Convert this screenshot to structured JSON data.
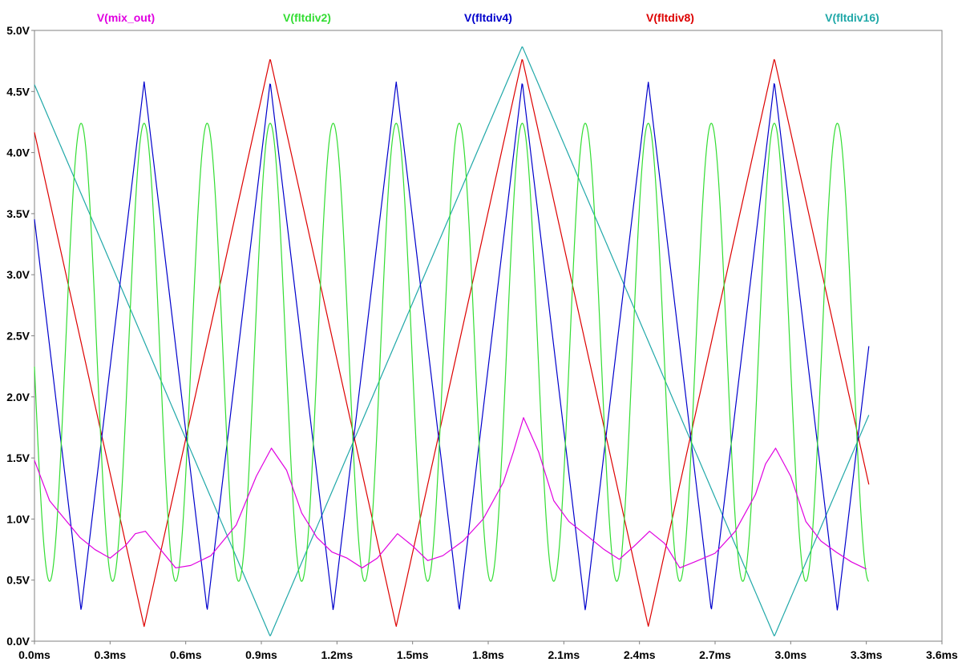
{
  "chart_data": {
    "type": "line",
    "title": "",
    "xlabel": "",
    "ylabel": "",
    "x_axis": {
      "min": 0.0,
      "max": 3.6,
      "unit": "ms",
      "ticks": [
        0.0,
        0.3,
        0.6,
        0.9,
        1.2,
        1.5,
        1.8,
        2.1,
        2.4,
        2.7,
        3.0,
        3.3,
        3.6
      ],
      "tick_labels": [
        "0.0ms",
        "0.3ms",
        "0.6ms",
        "0.9ms",
        "1.2ms",
        "1.5ms",
        "1.8ms",
        "2.1ms",
        "2.4ms",
        "2.7ms",
        "3.0ms",
        "3.3ms",
        "3.6ms"
      ]
    },
    "y_axis": {
      "min": 0.0,
      "max": 5.0,
      "unit": "V",
      "ticks": [
        0.0,
        0.5,
        1.0,
        1.5,
        2.0,
        2.5,
        3.0,
        3.5,
        4.0,
        4.5,
        5.0
      ],
      "tick_labels": [
        "0.0V",
        "0.5V",
        "1.0V",
        "1.5V",
        "2.0V",
        "2.5V",
        "3.0V",
        "3.5V",
        "4.0V",
        "4.5V",
        "5.0V"
      ]
    },
    "grid": false,
    "legend_position": "top",
    "series": [
      {
        "name": "V(mix_out)",
        "color": "#e000e0",
        "x": [
          0.0,
          0.06,
          0.12,
          0.18,
          0.24,
          0.3,
          0.36,
          0.4,
          0.44,
          0.5,
          0.56,
          0.62,
          0.7,
          0.8,
          0.88,
          0.94,
          1.0,
          1.06,
          1.12,
          1.18,
          1.24,
          1.3,
          1.36,
          1.44,
          1.5,
          1.56,
          1.62,
          1.7,
          1.78,
          1.86,
          1.9,
          1.94,
          2.0,
          2.06,
          2.12,
          2.2,
          2.26,
          2.32,
          2.38,
          2.44,
          2.5,
          2.56,
          2.62,
          2.7,
          2.78,
          2.86,
          2.9,
          2.94,
          3.0,
          3.06,
          3.12,
          3.18,
          3.24,
          3.3
        ],
        "y": [
          1.48,
          1.15,
          1.0,
          0.85,
          0.75,
          0.68,
          0.78,
          0.88,
          0.9,
          0.75,
          0.6,
          0.62,
          0.7,
          0.95,
          1.35,
          1.58,
          1.4,
          1.05,
          0.85,
          0.73,
          0.68,
          0.6,
          0.68,
          0.88,
          0.78,
          0.66,
          0.7,
          0.82,
          1.0,
          1.3,
          1.55,
          1.83,
          1.55,
          1.15,
          0.98,
          0.85,
          0.75,
          0.67,
          0.78,
          0.9,
          0.8,
          0.6,
          0.65,
          0.72,
          0.9,
          1.2,
          1.45,
          1.58,
          1.35,
          0.98,
          0.82,
          0.73,
          0.65,
          0.59
        ]
      },
      {
        "name": "V(fltdiv2)",
        "color": "#33dd33",
        "shape": "sine",
        "period_ms": 0.25,
        "peak_time_ms": 0.185,
        "ymin": 0.49,
        "ymax": 4.24,
        "x_start": 0.0,
        "x_end": 3.31
      },
      {
        "name": "V(fltdiv4)",
        "color": "#0000cc",
        "shape": "triangle",
        "period_ms": 0.5,
        "peak_time_ms": 0.435,
        "ymin": 0.25,
        "ymax": 4.58,
        "x_start": 0.0,
        "x_end": 3.31
      },
      {
        "name": "V(fltdiv8)",
        "color": "#dd0000",
        "shape": "triangle",
        "period_ms": 1.0,
        "peak_time_ms": 0.935,
        "ymin": 0.12,
        "ymax": 4.77,
        "x_start": 0.0,
        "x_end": 3.31
      },
      {
        "name": "V(fltdiv16)",
        "color": "#20a8a8",
        "shape": "triangle",
        "period_ms": 2.0,
        "peak_time_ms": 1.935,
        "ymin": 0.04,
        "ymax": 4.87,
        "x_start": 0.0,
        "x_end": 3.31
      }
    ]
  }
}
